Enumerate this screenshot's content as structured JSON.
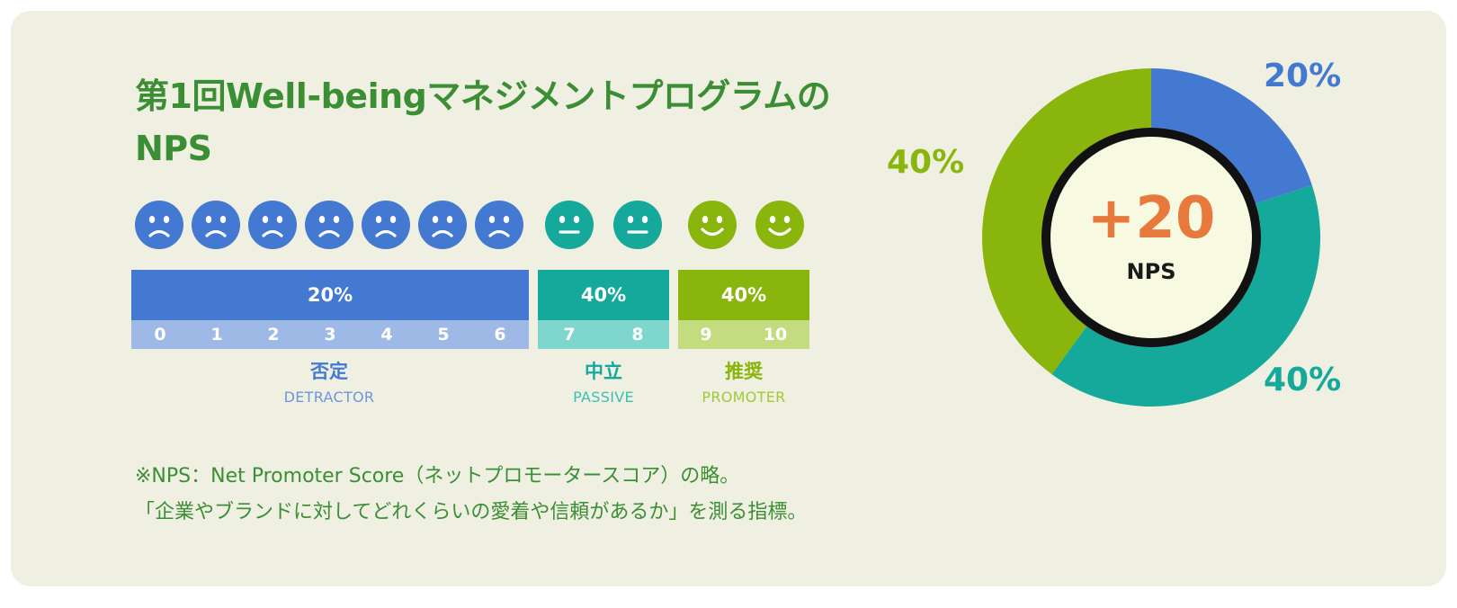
{
  "title_lines": [
    "第1回Well-beingマネジメントプログラムの",
    "NPS"
  ],
  "scale": {
    "groups": [
      {
        "name": "detractor",
        "percent_label": "20%",
        "label_jp": "否定",
        "label_en": "DETRACTOR",
        "scores": [
          "0",
          "1",
          "2",
          "3",
          "4",
          "5",
          "6"
        ],
        "color": "#4479d2",
        "light": "#9fb9e6"
      },
      {
        "name": "passive",
        "percent_label": "40%",
        "label_jp": "中立",
        "label_en": "PASSIVE",
        "scores": [
          "7",
          "8"
        ],
        "color": "#14a99a",
        "light": "#7fd6cc"
      },
      {
        "name": "promoter",
        "percent_label": "40%",
        "label_jp": "推奨",
        "label_en": "PROMOTER",
        "scores": [
          "9",
          "10"
        ],
        "color": "#8ab50c",
        "light": "#c3dc80"
      }
    ],
    "faces": [
      "sad",
      "sad",
      "sad",
      "sad",
      "sad",
      "sad",
      "sad",
      "neutral",
      "neutral",
      "happy",
      "happy"
    ]
  },
  "footnote_lines": [
    "※NPS：Net Promoter Score（ネットプロモータースコア）の略。",
    "「企業やブランドに対してどれくらいの愛着や信頼があるか」を測る指標。"
  ],
  "chart_data": {
    "type": "pie",
    "subtype": "donut",
    "slices": [
      {
        "group": "detractor",
        "value": 20,
        "label": "20%",
        "color": "#4479d2"
      },
      {
        "group": "passive",
        "value": 40,
        "label": "40%",
        "color": "#14a99a"
      },
      {
        "group": "promoter",
        "value": 40,
        "label": "40%",
        "color": "#8ab50c"
      }
    ],
    "center_value": "+20",
    "center_label": "NPS"
  }
}
